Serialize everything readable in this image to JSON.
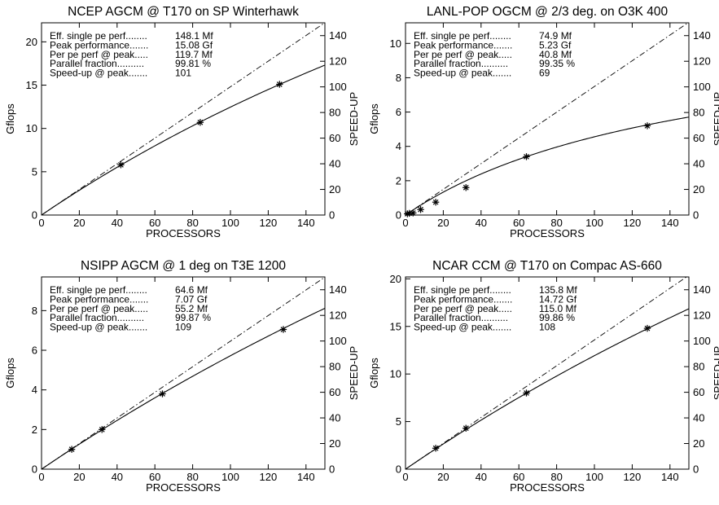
{
  "chart_data": [
    {
      "type": "scatter",
      "title": "NCEP AGCM @ T170 on SP Winterhawk",
      "xlabel": "PROCESSORS",
      "ylabel": "Gflops",
      "y2label": "SPEED-UP",
      "xlim": [
        0,
        150
      ],
      "ylim": [
        0,
        22.2
      ],
      "y2lim": [
        0,
        150
      ],
      "xticks": [
        0,
        20,
        40,
        60,
        80,
        100,
        120,
        140
      ],
      "yticks": [
        0,
        5,
        10,
        15,
        20
      ],
      "y2ticks": [
        0,
        20,
        40,
        60,
        80,
        100,
        120,
        140
      ],
      "series": [
        {
          "x": [
            42,
            84,
            126
          ],
          "y": [
            5.8,
            10.7,
            15.1
          ]
        }
      ],
      "fit": {
        "single_pe_gflops": 0.1481,
        "parallel_fraction": 0.9981
      },
      "stats": [
        {
          "label": "Eff. single pe perf........",
          "value": "148.1 Mf"
        },
        {
          "label": "Peak performance.......",
          "value": "15.08 Gf"
        },
        {
          "label": "Per pe perf @ peak.....",
          "value": "119.7 Mf"
        },
        {
          "label": "Parallel fraction..........",
          "value": "99.81 %"
        },
        {
          "label": "Speed-up @ peak.......",
          "value": "101"
        }
      ]
    },
    {
      "type": "scatter",
      "title": "LANL-POP OGCM @ 2/3 deg. on O3K 400",
      "xlabel": "PROCESSORS",
      "ylabel": "Gflops",
      "y2label": "SPEED-UP",
      "xlim": [
        0,
        150
      ],
      "ylim": [
        0,
        11.2
      ],
      "y2lim": [
        0,
        150
      ],
      "xticks": [
        0,
        20,
        40,
        60,
        80,
        100,
        120,
        140
      ],
      "yticks": [
        0,
        2,
        4,
        6,
        8,
        10
      ],
      "y2ticks": [
        0,
        20,
        40,
        60,
        80,
        100,
        120,
        140
      ],
      "series": [
        {
          "x": [
            1,
            2,
            4,
            8,
            16,
            32,
            64,
            128
          ],
          "y": [
            0.07,
            0.1,
            0.12,
            0.32,
            0.75,
            1.6,
            3.4,
            5.2
          ]
        }
      ],
      "fit": {
        "single_pe_gflops": 0.0749,
        "parallel_fraction": 0.9935
      },
      "stats": [
        {
          "label": "Eff. single pe perf........",
          "value": "74.9 Mf"
        },
        {
          "label": "Peak performance.......",
          "value": "5.23 Gf"
        },
        {
          "label": "Per pe perf @ peak.....",
          "value": "40.8 Mf"
        },
        {
          "label": "Parallel fraction..........",
          "value": "99.35 %"
        },
        {
          "label": "Speed-up @ peak.......",
          "value": "69"
        }
      ]
    },
    {
      "type": "scatter",
      "title": "NSIPP AGCM @ 1 deg on T3E 1200",
      "xlabel": "PROCESSORS",
      "ylabel": "Gflops",
      "y2label": "SPEED-UP",
      "xlim": [
        0,
        150
      ],
      "ylim": [
        0,
        9.7
      ],
      "y2lim": [
        0,
        150
      ],
      "xticks": [
        0,
        20,
        40,
        60,
        80,
        100,
        120,
        140
      ],
      "yticks": [
        0,
        2,
        4,
        6,
        8
      ],
      "y2ticks": [
        0,
        20,
        40,
        60,
        80,
        100,
        120,
        140
      ],
      "series": [
        {
          "x": [
            16,
            32,
            64,
            128
          ],
          "y": [
            1.0,
            2.0,
            3.8,
            7.05
          ]
        }
      ],
      "fit": {
        "single_pe_gflops": 0.0646,
        "parallel_fraction": 0.9987
      },
      "stats": [
        {
          "label": "Eff. single pe perf........",
          "value": "64.6 Mf"
        },
        {
          "label": "Peak performance.......",
          "value": "7.07 Gf"
        },
        {
          "label": "Per pe perf @ peak.....",
          "value": "55.2 Mf"
        },
        {
          "label": "Parallel fraction..........",
          "value": "99.87 %"
        },
        {
          "label": "Speed-up @ peak.......",
          "value": "109"
        }
      ]
    },
    {
      "type": "scatter",
      "title": "NCAR CCM @ T170 on Compac AS-660",
      "xlabel": "PROCESSORS",
      "ylabel": "Gflops",
      "y2label": "SPEED-UP",
      "xlim": [
        0,
        150
      ],
      "ylim": [
        0,
        20.2
      ],
      "y2lim": [
        0,
        150
      ],
      "xticks": [
        0,
        20,
        40,
        60,
        80,
        100,
        120,
        140
      ],
      "yticks": [
        0,
        5,
        10,
        15,
        20
      ],
      "y2ticks": [
        0,
        20,
        40,
        60,
        80,
        100,
        120,
        140
      ],
      "series": [
        {
          "x": [
            16,
            32,
            64,
            128
          ],
          "y": [
            2.2,
            4.3,
            8.0,
            14.8
          ]
        }
      ],
      "fit": {
        "single_pe_gflops": 0.1358,
        "parallel_fraction": 0.9986
      },
      "stats": [
        {
          "label": "Eff. single pe perf........",
          "value": "135.8 Mf"
        },
        {
          "label": "Peak performance.......",
          "value": "14.72 Gf"
        },
        {
          "label": "Per pe perf @ peak.....",
          "value": "115.0 Mf"
        },
        {
          "label": "Parallel fraction..........",
          "value": "99.86 %"
        },
        {
          "label": "Speed-up @ peak.......",
          "value": "108"
        }
      ]
    }
  ]
}
